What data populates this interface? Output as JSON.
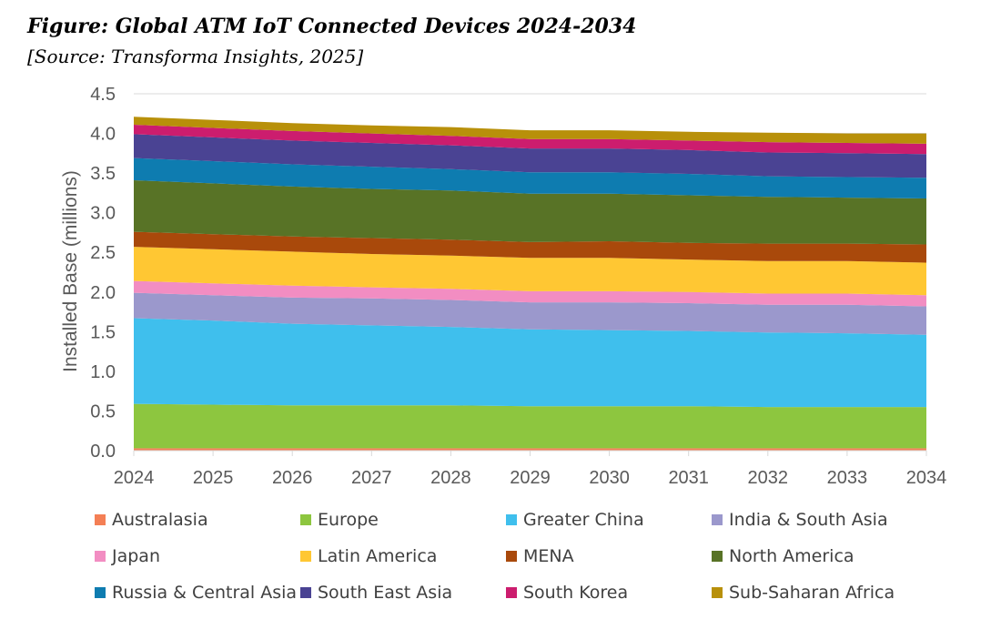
{
  "header": {
    "title": "Figure: Global ATM IoT Connected Devices 2024-2034",
    "source": "[Source: Transforma Insights, 2025]"
  },
  "chart_data": {
    "type": "area",
    "stacked": true,
    "title": "Figure: Global ATM IoT Connected Devices 2024-2034",
    "xlabel": "",
    "ylabel": "Installed Base (millions)",
    "ylim": [
      0,
      4.5
    ],
    "yticks": [
      "0.0",
      "0.5",
      "1.0",
      "1.5",
      "2.0",
      "2.5",
      "3.0",
      "3.5",
      "4.0",
      "4.5"
    ],
    "grid": true,
    "legend_position": "bottom",
    "x": [
      "2024",
      "2025",
      "2026",
      "2027",
      "2028",
      "2029",
      "2030",
      "2031",
      "2032",
      "2033",
      "2034"
    ],
    "series": [
      {
        "name": "Australasia",
        "color": "#F47F55",
        "values": [
          0.03,
          0.03,
          0.03,
          0.03,
          0.03,
          0.03,
          0.03,
          0.03,
          0.03,
          0.03,
          0.03
        ]
      },
      {
        "name": "Europe",
        "color": "#8DC63F",
        "values": [
          0.56,
          0.55,
          0.54,
          0.54,
          0.54,
          0.53,
          0.53,
          0.53,
          0.52,
          0.52,
          0.52
        ]
      },
      {
        "name": "Greater China",
        "color": "#3FBFED",
        "values": [
          1.08,
          1.06,
          1.03,
          1.01,
          0.99,
          0.97,
          0.96,
          0.95,
          0.94,
          0.93,
          0.91
        ]
      },
      {
        "name": "India & South Asia",
        "color": "#9B98CC",
        "values": [
          0.32,
          0.32,
          0.33,
          0.34,
          0.34,
          0.34,
          0.35,
          0.35,
          0.35,
          0.36,
          0.36
        ]
      },
      {
        "name": "Japan",
        "color": "#F28DC2",
        "values": [
          0.15,
          0.15,
          0.15,
          0.14,
          0.14,
          0.14,
          0.14,
          0.14,
          0.14,
          0.14,
          0.14
        ]
      },
      {
        "name": "Latin America",
        "color": "#FFC733",
        "values": [
          0.43,
          0.43,
          0.43,
          0.42,
          0.42,
          0.42,
          0.42,
          0.41,
          0.41,
          0.41,
          0.41
        ]
      },
      {
        "name": "MENA",
        "color": "#A9490B",
        "values": [
          0.19,
          0.19,
          0.19,
          0.2,
          0.2,
          0.2,
          0.21,
          0.21,
          0.22,
          0.22,
          0.23
        ]
      },
      {
        "name": "North America",
        "color": "#587326",
        "values": [
          0.65,
          0.64,
          0.63,
          0.62,
          0.62,
          0.61,
          0.6,
          0.6,
          0.59,
          0.58,
          0.58
        ]
      },
      {
        "name": "Russia & Central Asia",
        "color": "#0E7CB0",
        "values": [
          0.28,
          0.28,
          0.28,
          0.28,
          0.27,
          0.27,
          0.27,
          0.27,
          0.26,
          0.26,
          0.26
        ]
      },
      {
        "name": "South East Asia",
        "color": "#4A4393",
        "values": [
          0.3,
          0.3,
          0.3,
          0.3,
          0.3,
          0.3,
          0.3,
          0.3,
          0.3,
          0.3,
          0.3
        ]
      },
      {
        "name": "South Korea",
        "color": "#CC1D6E",
        "values": [
          0.12,
          0.12,
          0.12,
          0.12,
          0.12,
          0.12,
          0.12,
          0.12,
          0.13,
          0.13,
          0.13
        ]
      },
      {
        "name": "Sub-Saharan Africa",
        "color": "#B8900A",
        "values": [
          0.1,
          0.1,
          0.1,
          0.1,
          0.11,
          0.11,
          0.11,
          0.11,
          0.12,
          0.12,
          0.13
        ]
      }
    ]
  }
}
